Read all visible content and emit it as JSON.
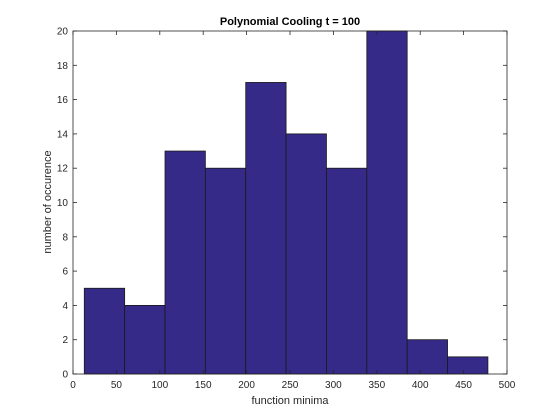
{
  "chart_data": {
    "type": "bar",
    "title": "Polynomial Cooling t = 100",
    "xlabel": "function minima",
    "ylabel": "number of occurence",
    "xlim": [
      0,
      500
    ],
    "ylim": [
      0,
      20
    ],
    "xticks": [
      0,
      50,
      100,
      150,
      200,
      250,
      300,
      350,
      400,
      450,
      500
    ],
    "yticks": [
      0,
      2,
      4,
      6,
      8,
      10,
      12,
      14,
      16,
      18,
      20
    ],
    "bin_edges": [
      13,
      59.5,
      106,
      152.5,
      199,
      245.5,
      292,
      338.5,
      385,
      431.5,
      478
    ],
    "values": [
      5,
      4,
      13,
      12,
      17,
      14,
      12,
      20,
      2,
      1
    ],
    "grid": false,
    "bar_color": "#352a87",
    "edge_color": "#1a1a1a"
  }
}
